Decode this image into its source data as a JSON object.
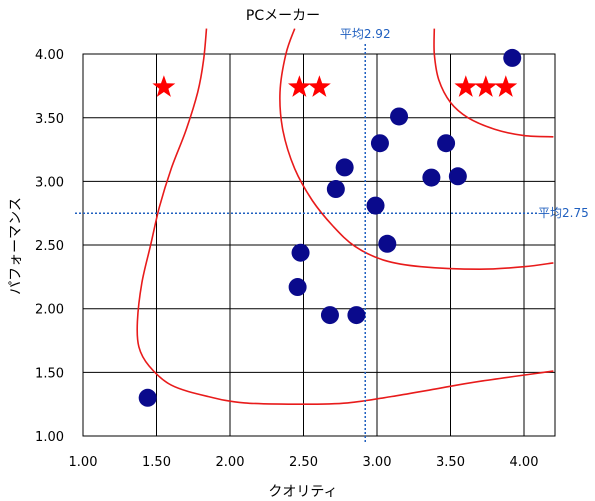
{
  "chart_data": {
    "type": "scatter",
    "title": "PCメーカー",
    "xlabel": "クオリティ",
    "ylabel": "パフォーマンス",
    "xlim": [
      1.0,
      4.2
    ],
    "ylim": [
      1.0,
      4.0
    ],
    "xticks": [
      "1.00",
      "1.50",
      "2.00",
      "2.50",
      "3.00",
      "3.50",
      "4.00"
    ],
    "yticks": [
      "1.00",
      "1.50",
      "2.00",
      "2.50",
      "3.00",
      "3.50",
      "4.00"
    ],
    "grid": true,
    "points": [
      {
        "x": 1.44,
        "y": 1.3
      },
      {
        "x": 2.46,
        "y": 2.17
      },
      {
        "x": 2.48,
        "y": 2.44
      },
      {
        "x": 2.68,
        "y": 1.95
      },
      {
        "x": 2.72,
        "y": 2.94
      },
      {
        "x": 2.78,
        "y": 3.11
      },
      {
        "x": 2.86,
        "y": 1.95
      },
      {
        "x": 2.99,
        "y": 2.81
      },
      {
        "x": 3.02,
        "y": 3.3
      },
      {
        "x": 3.07,
        "y": 2.51
      },
      {
        "x": 3.15,
        "y": 3.51
      },
      {
        "x": 3.37,
        "y": 3.03
      },
      {
        "x": 3.47,
        "y": 3.3
      },
      {
        "x": 3.55,
        "y": 3.04
      },
      {
        "x": 3.92,
        "y": 3.97
      }
    ],
    "reference_lines": [
      {
        "orientation": "vertical",
        "value": 2.92,
        "label": "平均2.92"
      },
      {
        "orientation": "horizontal",
        "value": 2.75,
        "label": "平均2.75"
      }
    ],
    "contours": [
      [
        [
          1.84,
          4.2
        ],
        [
          1.82,
          3.95
        ],
        [
          1.78,
          3.7
        ],
        [
          1.7,
          3.4
        ],
        [
          1.6,
          3.1
        ],
        [
          1.52,
          2.8
        ],
        [
          1.46,
          2.5
        ],
        [
          1.4,
          2.2
        ],
        [
          1.37,
          1.9
        ],
        [
          1.38,
          1.7
        ],
        [
          1.45,
          1.55
        ],
        [
          1.6,
          1.4
        ],
        [
          1.85,
          1.31
        ],
        [
          2.1,
          1.26
        ],
        [
          2.5,
          1.25
        ],
        [
          2.8,
          1.26
        ],
        [
          3.1,
          1.31
        ],
        [
          3.4,
          1.37
        ],
        [
          3.7,
          1.43
        ],
        [
          4.2,
          1.51
        ]
      ],
      [
        [
          2.44,
          4.2
        ],
        [
          2.38,
          4.0
        ],
        [
          2.34,
          3.7
        ],
        [
          2.36,
          3.4
        ],
        [
          2.44,
          3.1
        ],
        [
          2.56,
          2.85
        ],
        [
          2.7,
          2.65
        ],
        [
          2.85,
          2.49
        ],
        [
          3.05,
          2.38
        ],
        [
          3.3,
          2.33
        ],
        [
          3.7,
          2.31
        ],
        [
          4.0,
          2.33
        ],
        [
          4.2,
          2.36
        ]
      ],
      [
        [
          3.39,
          4.2
        ],
        [
          3.39,
          4.0
        ],
        [
          3.42,
          3.8
        ],
        [
          3.5,
          3.62
        ],
        [
          3.62,
          3.5
        ],
        [
          3.8,
          3.41
        ],
        [
          4.0,
          3.36
        ],
        [
          4.2,
          3.35
        ]
      ]
    ],
    "stars": [
      {
        "count": 1,
        "x": 1.55,
        "y": 3.74
      },
      {
        "count": 2,
        "x": 2.54,
        "y": 3.74
      },
      {
        "count": 3,
        "x": 3.74,
        "y": 3.74
      }
    ],
    "colors": {
      "points": "#0a0a8c",
      "contour": "#e81b1b",
      "star": "#ff0000",
      "average": "#1f5fbf",
      "grid": "#000000"
    }
  }
}
